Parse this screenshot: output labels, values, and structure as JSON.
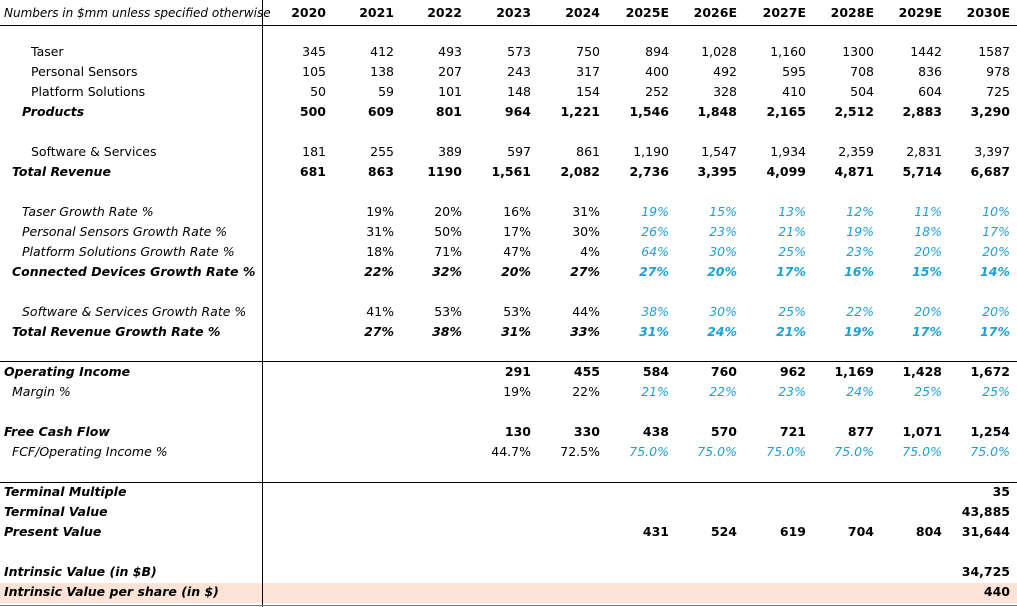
{
  "header": {
    "note": "Numbers in $mm unless specified otherwise",
    "years": [
      "2020",
      "2021",
      "2022",
      "2023",
      "2024",
      "2025E",
      "2026E",
      "2027E",
      "2028E",
      "2029E",
      "2030E"
    ]
  },
  "rows": [
    {
      "label": "Taser",
      "indent": 1,
      "values": [
        "345",
        "412",
        "493",
        "573",
        "750",
        "894",
        "1,028",
        "1,160",
        "1300",
        "1442",
        "1587"
      ]
    },
    {
      "label": "Personal Sensors",
      "indent": 1,
      "values": [
        "105",
        "138",
        "207",
        "243",
        "317",
        "400",
        "492",
        "595",
        "708",
        "836",
        "978"
      ]
    },
    {
      "label": "Platform Solutions",
      "indent": 1,
      "values": [
        "50",
        "59",
        "101",
        "148",
        "154",
        "252",
        "328",
        "410",
        "504",
        "604",
        "725"
      ]
    },
    {
      "label": "Products",
      "indent": 0,
      "bold": true,
      "values": [
        "500",
        "609",
        "801",
        "964",
        "1,221",
        "1,546",
        "1,848",
        "2,165",
        "2,512",
        "2,883",
        "3,290"
      ]
    },
    {
      "label": "Software & Services",
      "indent": 1,
      "values": [
        "181",
        "255",
        "389",
        "597",
        "861",
        "1,190",
        "1,547",
        "1,934",
        "2,359",
        "2,831",
        "3,397"
      ]
    },
    {
      "label": "Total Revenue",
      "indent": 0,
      "bold": true,
      "values": [
        "681",
        "863",
        "1190",
        "1,561",
        "2,082",
        "2,736",
        "3,395",
        "4,099",
        "4,871",
        "5,714",
        "6,687"
      ]
    },
    {
      "label": "Taser Growth Rate %",
      "indent": 1,
      "italic": true,
      "values": [
        "",
        "19%",
        "20%",
        "16%",
        "31%",
        "19%",
        "15%",
        "13%",
        "12%",
        "11%",
        "10%"
      ]
    },
    {
      "label": "Personal Sensors Growth Rate %",
      "indent": 1,
      "italic": true,
      "values": [
        "",
        "31%",
        "50%",
        "17%",
        "30%",
        "26%",
        "23%",
        "21%",
        "19%",
        "18%",
        "17%"
      ]
    },
    {
      "label": "Platform Solutions Growth Rate %",
      "indent": 1,
      "italic": true,
      "values": [
        "",
        "18%",
        "71%",
        "47%",
        "4%",
        "64%",
        "30%",
        "25%",
        "23%",
        "20%",
        "20%"
      ]
    },
    {
      "label": "Connected Devices Growth Rate %",
      "indent": 0,
      "bold": true,
      "italic": true,
      "values": [
        "",
        "22%",
        "32%",
        "20%",
        "27%",
        "27%",
        "20%",
        "17%",
        "16%",
        "15%",
        "14%"
      ]
    },
    {
      "label": "Software & Services Growth Rate %",
      "indent": 1,
      "italic": true,
      "values": [
        "",
        "41%",
        "53%",
        "53%",
        "44%",
        "38%",
        "30%",
        "25%",
        "22%",
        "20%",
        "20%"
      ]
    },
    {
      "label": "Total Revenue Growth Rate %",
      "indent": 0,
      "bold": true,
      "italic": true,
      "values": [
        "",
        "27%",
        "38%",
        "31%",
        "33%",
        "31%",
        "24%",
        "21%",
        "19%",
        "17%",
        "17%"
      ]
    },
    {
      "label": "Operating Income",
      "indent": 0,
      "bold": true,
      "values": [
        "",
        "",
        "",
        "291",
        "455",
        "584",
        "760",
        "962",
        "1,169",
        "1,428",
        "1,672"
      ]
    },
    {
      "label": "Margin %",
      "indent": 1,
      "italic": true,
      "values": [
        "",
        "",
        "",
        "19%",
        "22%",
        "21%",
        "22%",
        "23%",
        "24%",
        "25%",
        "25%"
      ]
    },
    {
      "label": "Free Cash Flow",
      "indent": 0,
      "bold": true,
      "values": [
        "",
        "",
        "",
        "130",
        "330",
        "438",
        "570",
        "721",
        "877",
        "1,071",
        "1,254"
      ]
    },
    {
      "label": "FCF/Operating Income %",
      "indent": 1,
      "italic": true,
      "values": [
        "",
        "",
        "",
        "44.7%",
        "72.5%",
        "75.0%",
        "75.0%",
        "75.0%",
        "75.0%",
        "75.0%",
        "75.0%"
      ]
    },
    {
      "label": "Terminal Multiple",
      "indent": 0,
      "bold": true,
      "values": [
        "",
        "",
        "",
        "",
        "",
        "",
        "",
        "",
        "",
        "",
        "35"
      ]
    },
    {
      "label": "Terminal Value",
      "indent": 0,
      "bold": true,
      "values": [
        "",
        "",
        "",
        "",
        "",
        "",
        "",
        "",
        "",
        "",
        "43,885"
      ]
    },
    {
      "label": "Present Value",
      "indent": 0,
      "bold": true,
      "values": [
        "",
        "",
        "",
        "",
        "",
        "431",
        "524",
        "619",
        "704",
        "804",
        "31,644"
      ]
    },
    {
      "label": "Intrinsic Value (in $B)",
      "indent": 0,
      "bold": true,
      "values": [
        "",
        "",
        "",
        "",
        "",
        "",
        "",
        "",
        "",
        "",
        "34,725"
      ]
    },
    {
      "label": "Intrinsic Value per share (in $)",
      "indent": 0,
      "bold": true,
      "highlight": true,
      "values": [
        "",
        "",
        "",
        "",
        "",
        "",
        "",
        "",
        "",
        "",
        "440"
      ]
    }
  ],
  "colors": {
    "forecast_blue": "#1ba1d9",
    "highlight": "#fde3d6"
  }
}
